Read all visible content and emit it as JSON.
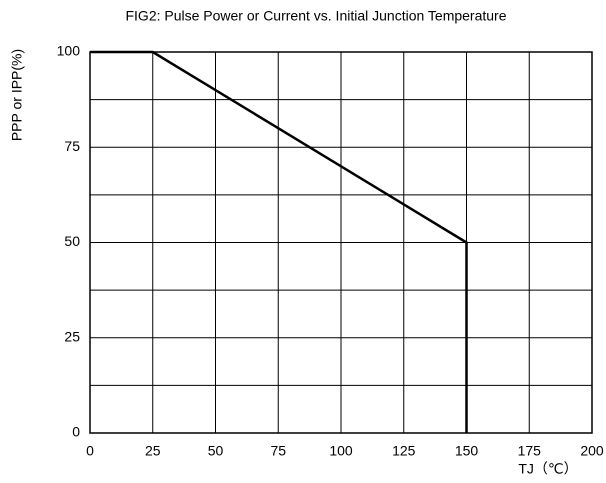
{
  "chart_data": {
    "type": "line",
    "title": "FIG2: Pulse Power or Current vs. Initial Junction Temperature",
    "x_label": "TJ（℃）",
    "y_label": "PPP or IPP(%)",
    "series": [
      {
        "x": [
          0,
          25,
          150,
          150
        ],
        "values": [
          100,
          100,
          50,
          0
        ],
        "color": "#000000"
      }
    ],
    "xlim": [
      0,
      200
    ],
    "ylim": [
      0,
      100
    ],
    "xticks": [
      0,
      25,
      50,
      75,
      100,
      125,
      150,
      175,
      200
    ],
    "yticks": [
      0,
      25,
      50,
      75,
      100
    ],
    "y_minor_gridlines": [
      12.5,
      37.5,
      62.5,
      87.5
    ],
    "grid": true
  }
}
